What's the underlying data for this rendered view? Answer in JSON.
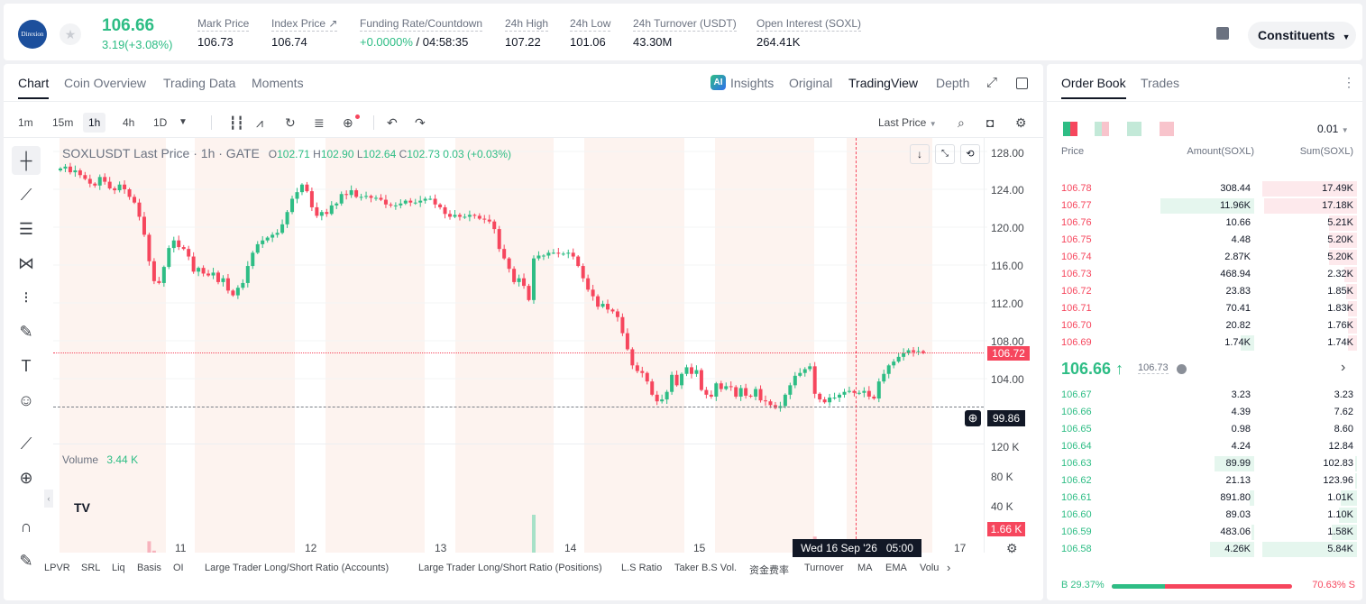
{
  "header": {
    "logo_text": "Direxion",
    "price": "106.66",
    "change": "3.19(+3.08%)",
    "stats": [
      {
        "label": "Mark Price",
        "value": "106.73"
      },
      {
        "label": "Index Price ↗",
        "value": "106.74"
      },
      {
        "label": "Funding Rate/Countdown",
        "value_green": "+0.0000%",
        "value": " / 04:58:35"
      },
      {
        "label": "24h High",
        "value": "107.22"
      },
      {
        "label": "24h Low",
        "value": "101.06"
      },
      {
        "label": "24h Turnover (USDT)",
        "value": "43.30M"
      },
      {
        "label": "Open Interest (SOXL)",
        "value": "264.41K"
      }
    ],
    "constituents": "Constituents"
  },
  "chart_tabs": [
    "Chart",
    "Coin Overview",
    "Trading Data",
    "Moments"
  ],
  "view_tabs": {
    "insights": "Insights",
    "original": "Original",
    "tradingview": "TradingView",
    "depth": "Depth"
  },
  "timeframes": [
    "1m",
    "15m",
    "1h",
    "4h",
    "1D"
  ],
  "price_type": "Last Price",
  "legend": {
    "symbol": "SOXLUSDT Last Price · 1h · GATE",
    "o": "102.71",
    "h": "102.90",
    "l": "102.64",
    "c": "102.73",
    "chg": "0.03 (+0.03%)"
  },
  "volume": {
    "label": "Volume",
    "value": "3.44 K"
  },
  "price_axis": [
    "128.00",
    "124.00",
    "120.00",
    "116.00",
    "112.00",
    "108.00",
    "104.00"
  ],
  "volume_axis": [
    "120 K",
    "80 K",
    "40 K"
  ],
  "x_axis": [
    "11",
    "12",
    "13",
    "14",
    "15",
    "17"
  ],
  "current_price_tag": "106.72",
  "crosshair_price": "99.86",
  "volume_tag": "1.66 K",
  "crosshair_time": "Wed 16 Sep '26   05:00",
  "indicators": [
    "LPVR",
    "SRL",
    "Liq",
    "Basis",
    "OI",
    "Large Trader Long/Short Ratio (Accounts)",
    "Large Trader Long/Short Ratio (Positions)",
    "L.S Ratio",
    "Taker B.S Vol.",
    "资金费率",
    "Turnover",
    "MA",
    "EMA",
    "Volu"
  ],
  "chart_data": {
    "type": "candlestick",
    "interval": "1h",
    "y_range": [
      100,
      130
    ],
    "closes": [
      126.2,
      126.4,
      125.8,
      126,
      125.5,
      125.1,
      124.6,
      124.4,
      125.3,
      124.8,
      124.1,
      123.9,
      124.5,
      124,
      123.2,
      122.6,
      121.1,
      119.2,
      116.4,
      114.3,
      114.1,
      115.8,
      117.8,
      118.6,
      117.9,
      117.7,
      116.9,
      115.3,
      115.7,
      115.1,
      114.9,
      115.2,
      114.2,
      114.6,
      113.3,
      112.8,
      113.6,
      114.1,
      115.9,
      117.3,
      118.2,
      118.6,
      118.9,
      119.2,
      119.4,
      120.3,
      121.6,
      123,
      123.7,
      124.5,
      123.8,
      122.1,
      121.2,
      121.6,
      121.4,
      122.3,
      122.5,
      123.5,
      123.4,
      123.9,
      123.2,
      123.2,
      123.3,
      123.1,
      123.1,
      122.9,
      122.4,
      122.3,
      122.3,
      122.5,
      122.8,
      122.6,
      122.6,
      122.8,
      123,
      123,
      122.4,
      122.1,
      121.4,
      121.1,
      121.3,
      121.1,
      121.1,
      121.3,
      121.2,
      120.9,
      120.8,
      120.6,
      119.8,
      117.7,
      116.7,
      115.6,
      114.2,
      114.6,
      113.8,
      112.3,
      116.7,
      117,
      117,
      117.3,
      117.3,
      117.2,
      117.2,
      117.3,
      116.9,
      115.9,
      114.6,
      113.4,
      112.7,
      111.6,
      111.9,
      111.3,
      111.1,
      110.5,
      108.8,
      107.1,
      105.4,
      104.8,
      104.6,
      103.7,
      102.3,
      101.6,
      101.8,
      102.6,
      104.4,
      103.3,
      104.5,
      105.2,
      104.5,
      104.9,
      102.8,
      102.3,
      102.1,
      103.5,
      102.9,
      103.2,
      103.1,
      102.1,
      103,
      102.2,
      102.1,
      102.9,
      101.7,
      101.6,
      101.2,
      100.9,
      101.1,
      102.3,
      103.3,
      104.3,
      104.6,
      105,
      105.3,
      102.4,
      101.8,
      101.5,
      102,
      102,
      102.3,
      102.6,
      102.7,
      102.5,
      102.5,
      102.7,
      102.1,
      101.9,
      103.7,
      104.5,
      105.4,
      105.8,
      106.3,
      106.7,
      107,
      106.8,
      106.9,
      106.72
    ]
  },
  "order_book": {
    "tabs": [
      "Order Book",
      "Trades"
    ],
    "precision": "0.01",
    "headers": [
      "Price",
      "Amount(SOXL)",
      "Sum(SOXL)"
    ],
    "asks": [
      [
        "106.78",
        "308.44",
        "17.49K"
      ],
      [
        "106.77",
        "11.96K",
        "17.18K"
      ],
      [
        "106.76",
        "10.66",
        "5.21K"
      ],
      [
        "106.75",
        "4.48",
        "5.20K"
      ],
      [
        "106.74",
        "2.87K",
        "5.20K"
      ],
      [
        "106.73",
        "468.94",
        "2.32K"
      ],
      [
        "106.72",
        "23.83",
        "1.85K"
      ],
      [
        "106.71",
        "70.41",
        "1.83K"
      ],
      [
        "106.70",
        "20.82",
        "1.76K"
      ],
      [
        "106.69",
        "1.74K",
        "1.74K"
      ]
    ],
    "ask_depth": [
      1,
      0.98,
      0.3,
      0.3,
      0.3,
      0.13,
      0.11,
      0.1,
      0.1,
      0.1
    ],
    "ask_amount_fill": [
      0,
      0.95,
      0,
      0,
      0,
      0,
      0,
      0,
      0,
      0.14
    ],
    "mid_price": "106.66",
    "mid_mark": "106.73",
    "bids": [
      [
        "106.67",
        "3.23",
        "3.23"
      ],
      [
        "106.66",
        "4.39",
        "7.62"
      ],
      [
        "106.65",
        "0.98",
        "8.60"
      ],
      [
        "106.64",
        "4.24",
        "12.84"
      ],
      [
        "106.63",
        "89.99",
        "102.83"
      ],
      [
        "106.62",
        "21.13",
        "123.96"
      ],
      [
        "106.61",
        "891.80",
        "1.01K"
      ],
      [
        "106.60",
        "89.03",
        "1.10K"
      ],
      [
        "106.59",
        "483.06",
        "1.58K"
      ],
      [
        "106.58",
        "4.26K",
        "5.84K"
      ]
    ],
    "bid_depth": [
      0,
      0,
      0,
      0,
      0.02,
      0.02,
      0.17,
      0.19,
      0.27,
      1
    ],
    "bid_amount_fill": [
      0,
      0,
      0,
      0,
      0.4,
      0,
      0.05,
      0,
      0.03,
      0.45
    ],
    "buy_ratio": "B 29.37%",
    "sell_ratio": "70.63% S",
    "buy_fraction": 0.2937
  }
}
